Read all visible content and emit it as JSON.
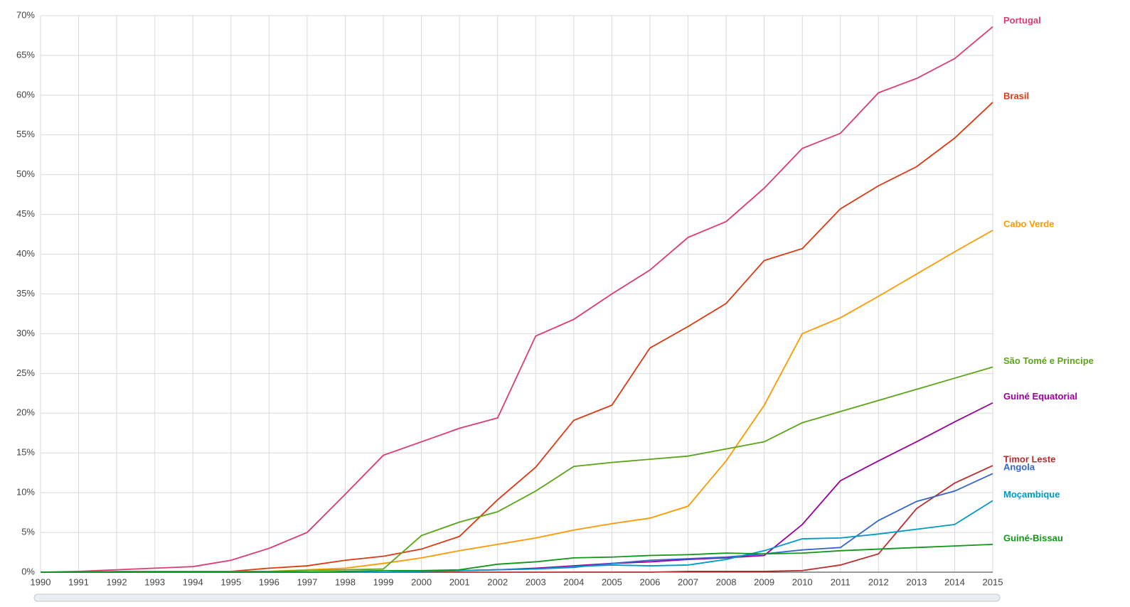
{
  "chart_data": {
    "type": "line",
    "x": [
      1990,
      1991,
      1992,
      1993,
      1994,
      1995,
      1996,
      1997,
      1998,
      1999,
      2000,
      2001,
      2002,
      2003,
      2004,
      2005,
      2006,
      2007,
      2008,
      2009,
      2010,
      2011,
      2012,
      2013,
      2014,
      2015
    ],
    "xlim": [
      1990,
      2015
    ],
    "xticks": [
      1990,
      1991,
      1992,
      1993,
      1994,
      1995,
      1996,
      1997,
      1998,
      1999,
      2000,
      2001,
      2002,
      2003,
      2004,
      2005,
      2006,
      2007,
      2008,
      2009,
      2010,
      2011,
      2012,
      2013,
      2014,
      2015
    ],
    "ylim": [
      0,
      70
    ],
    "yticks": [
      {
        "value": 0,
        "label": "0%"
      },
      {
        "value": 5,
        "label": "5%"
      },
      {
        "value": 10,
        "label": "10%"
      },
      {
        "value": 15,
        "label": "15%"
      },
      {
        "value": 20,
        "label": "20%"
      },
      {
        "value": 25,
        "label": "25%"
      },
      {
        "value": 30,
        "label": "30%"
      },
      {
        "value": 35,
        "label": "35%"
      },
      {
        "value": 40,
        "label": "40%"
      },
      {
        "value": 45,
        "label": "45%"
      },
      {
        "value": 50,
        "label": "50%"
      },
      {
        "value": 55,
        "label": "55%"
      },
      {
        "value": 60,
        "label": "60%"
      },
      {
        "value": 65,
        "label": "65%"
      },
      {
        "value": 70,
        "label": "70%"
      }
    ],
    "grid": true,
    "series": [
      {
        "name": "Portugal",
        "color": "#dc3a74",
        "values": [
          0,
          0.1,
          0.3,
          0.5,
          0.7,
          1.5,
          3,
          5,
          9.8,
          14.7,
          16.4,
          18.1,
          19.4,
          29.7,
          31.8,
          35,
          38,
          42.1,
          44.1,
          48.3,
          53.3,
          55.2,
          60.3,
          62.1,
          64.6,
          68.6
        ]
      },
      {
        "name": "Brasil",
        "color": "#dc3912",
        "values": [
          0,
          0,
          0,
          0,
          0,
          0.1,
          0.5,
          0.8,
          1.5,
          2,
          2.9,
          4.5,
          9.1,
          13.2,
          19.1,
          21,
          28.2,
          30.9,
          33.8,
          39.2,
          40.7,
          45.7,
          48.6,
          51,
          54.6,
          59.1
        ]
      },
      {
        "name": "Cabo Verde",
        "color": "#ff9900",
        "values": [
          0,
          0,
          0,
          0,
          0,
          0,
          0.1,
          0.3,
          0.5,
          1.1,
          1.8,
          2.7,
          3.5,
          4.3,
          5.3,
          6.1,
          6.8,
          8.3,
          14,
          21,
          30,
          32,
          34.7,
          37.5,
          40.3,
          43
        ]
      },
      {
        "name": "São Tomé e Principe",
        "color": "#5aa415",
        "values": [
          0,
          0,
          0.1,
          0.1,
          0.1,
          0.1,
          0.1,
          0.2,
          0.3,
          0.4,
          4.6,
          6.3,
          7.6,
          10.2,
          13.3,
          13.8,
          14.2,
          14.6,
          15.5,
          16.4,
          18.8,
          20.2,
          21.6,
          23,
          24.4,
          25.8
        ]
      },
      {
        "name": "Guiné Equatorial",
        "color": "#990099",
        "values": [
          0,
          0,
          0,
          0,
          0,
          0,
          0,
          0,
          0,
          0,
          0.1,
          0.2,
          0.3,
          0.5,
          0.8,
          1.1,
          1.3,
          1.6,
          1.8,
          2.1,
          6,
          11.5,
          14,
          16.4,
          18.9,
          21.3
        ]
      },
      {
        "name": "Timor Leste",
        "color": "#b82e2e",
        "values": [
          0,
          0,
          0,
          0,
          0,
          0,
          0,
          0,
          0,
          0,
          0,
          0,
          0,
          0,
          0,
          0,
          0,
          0.1,
          0.1,
          0.1,
          0.2,
          0.9,
          2.3,
          8,
          11.2,
          13.4
        ]
      },
      {
        "name": "Angola",
        "color": "#3366cc",
        "values": [
          0,
          0,
          0,
          0,
          0,
          0,
          0,
          0,
          0,
          0,
          0.1,
          0.2,
          0.3,
          0.4,
          0.6,
          1.1,
          1.5,
          1.7,
          1.9,
          2.3,
          2.8,
          3.1,
          6.5,
          8.9,
          10.2,
          12.4
        ]
      },
      {
        "name": "Moçambique",
        "color": "#0099c6",
        "values": [
          0,
          0,
          0,
          0,
          0,
          0,
          0,
          0,
          0,
          0,
          0.1,
          0.2,
          0.3,
          0.4,
          0.7,
          0.9,
          0.8,
          0.9,
          1.6,
          2.7,
          4.2,
          4.3,
          4.8,
          5.4,
          6,
          9
        ]
      },
      {
        "name": "Guiné-Bissau",
        "color": "#109618",
        "values": [
          0,
          0,
          0,
          0,
          0,
          0,
          0,
          0,
          0.1,
          0.2,
          0.2,
          0.3,
          1,
          1.3,
          1.8,
          1.9,
          2.1,
          2.2,
          2.4,
          2.3,
          2.4,
          2.7,
          2.9,
          3.1,
          3.3,
          3.5
        ]
      }
    ]
  }
}
